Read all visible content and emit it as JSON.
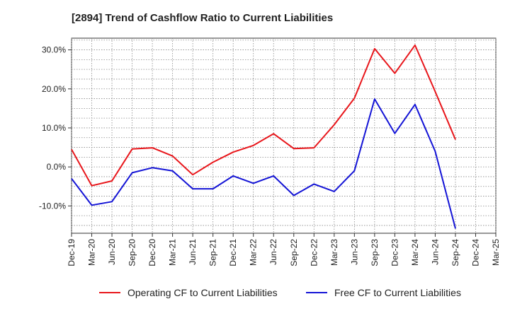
{
  "chart_data": {
    "type": "line",
    "title": "[2894]  Trend of Cashflow Ratio to Current Liabilities",
    "x": [
      "Dec-19",
      "Mar-20",
      "Jun-20",
      "Sep-20",
      "Dec-20",
      "Mar-21",
      "Jun-21",
      "Sep-21",
      "Dec-21",
      "Mar-22",
      "Jun-22",
      "Sep-22",
      "Dec-22",
      "Mar-23",
      "Jun-23",
      "Sep-23",
      "Dec-23",
      "Mar-24",
      "Jun-24",
      "Sep-24",
      "Dec-24",
      "Mar-25"
    ],
    "y_ticks": [
      "30.0%",
      "20.0%",
      "10.0%",
      "0.0%",
      "-10.0%"
    ],
    "y_tick_values": [
      30,
      20,
      10,
      0,
      -10
    ],
    "ylim": [
      -17,
      33
    ],
    "grid": true,
    "legend_position": "bottom",
    "series": [
      {
        "name": "Operating CF to Current Liabilities",
        "color": "#e8161b",
        "values": [
          4.5,
          -4.8,
          -3.6,
          4.6,
          4.9,
          2.8,
          -2.0,
          1.2,
          3.8,
          5.5,
          8.5,
          4.7,
          4.9,
          10.8,
          17.6,
          30.3,
          24.0,
          31.2,
          19.3,
          7.0,
          null,
          null
        ]
      },
      {
        "name": "Free CF to Current Liabilities",
        "color": "#1414d6",
        "values": [
          -3.0,
          -9.8,
          -8.9,
          -1.5,
          -0.2,
          -1.0,
          -5.6,
          -5.6,
          -2.3,
          -4.2,
          -2.3,
          -7.3,
          -4.4,
          -6.3,
          -1.0,
          17.4,
          8.6,
          16.0,
          4.0,
          -15.8,
          null,
          null
        ]
      }
    ]
  }
}
